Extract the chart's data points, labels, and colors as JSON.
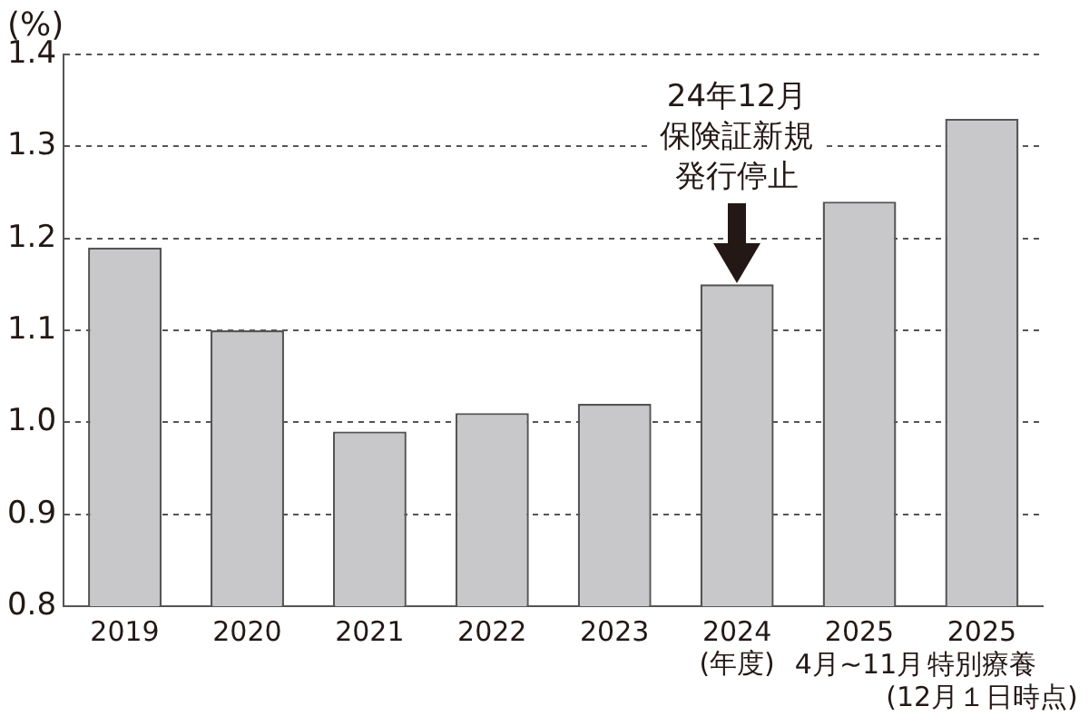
{
  "chart_data": {
    "type": "bar",
    "ylabel": "(%)",
    "xlabel": "(年度)",
    "categories": [
      "2019",
      "2020",
      "2021",
      "2022",
      "2023",
      "2024",
      "2025\n4月~11月",
      "2025\n特別療養\n(12月１日時点)"
    ],
    "values": [
      1.19,
      1.1,
      0.99,
      1.01,
      1.02,
      1.15,
      1.24,
      1.33
    ],
    "color": "#c8c8ca",
    "ylim": [
      0.8,
      1.4
    ],
    "yticks": [
      {
        "value": 0.8,
        "label": "0.8"
      },
      {
        "value": 0.9,
        "label": "0.9"
      },
      {
        "value": 1.0,
        "label": "1.0"
      },
      {
        "value": 1.1,
        "label": "1.1"
      },
      {
        "value": 1.2,
        "label": "1.2"
      },
      {
        "value": 1.3,
        "label": "1.3"
      },
      {
        "value": 1.4,
        "label": "1.4"
      }
    ],
    "grid": "y",
    "annotations": [
      {
        "text": "24年12月保険証新規発行停止",
        "x": "2024",
        "y": 1.15
      }
    ]
  }
}
